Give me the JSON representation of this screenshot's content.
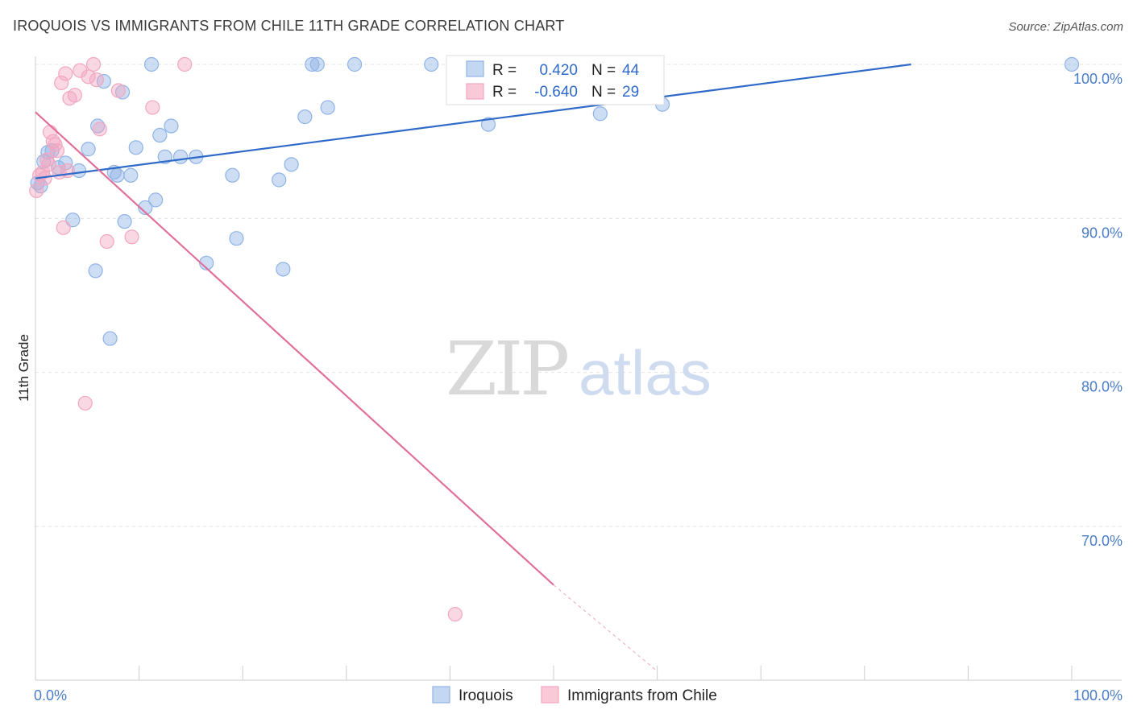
{
  "title": "IROQUOIS VS IMMIGRANTS FROM CHILE 11TH GRADE CORRELATION CHART",
  "source": "Source: ZipAtlas.com",
  "watermark": {
    "zip": "ZIP",
    "atlas": "atlas"
  },
  "chart_data": {
    "type": "scatter",
    "ylabel": "11th Grade",
    "xlim": [
      0,
      100
    ],
    "ylim": [
      61,
      100.5
    ],
    "x_tick_labels": [
      {
        "value": 0,
        "label": "0.0%"
      },
      {
        "value": 100,
        "label": "100.0%"
      }
    ],
    "y_tick_labels": [
      {
        "value": 100,
        "label": "100.0%"
      },
      {
        "value": 90,
        "label": "90.0%"
      },
      {
        "value": 80,
        "label": "80.0%"
      },
      {
        "value": 70,
        "label": "70.0%"
      }
    ],
    "grid": true,
    "legend_position": "top-center",
    "series": [
      {
        "name": "Iroquois",
        "color": "#8fb3e6",
        "line_color": "#2f6ac9",
        "r_label": "R =",
        "r_value": "0.420",
        "n_label": "N =",
        "n_value": "44",
        "trend": {
          "x1": 0,
          "y1": 92.6,
          "x2": 84.5,
          "y2": 100.0
        },
        "points": [
          [
            0.5,
            92.1
          ],
          [
            0.8,
            93.7
          ],
          [
            1.2,
            94.3
          ],
          [
            1.6,
            94.4
          ],
          [
            2.2,
            93.3
          ],
          [
            2.9,
            93.6
          ],
          [
            3.6,
            89.9
          ],
          [
            4.2,
            93.1
          ],
          [
            5.1,
            94.5
          ],
          [
            5.8,
            86.6
          ],
          [
            6.0,
            96.0
          ],
          [
            6.6,
            98.9
          ],
          [
            7.2,
            82.2
          ],
          [
            7.6,
            93.0
          ],
          [
            7.9,
            92.8
          ],
          [
            8.4,
            98.2
          ],
          [
            8.6,
            89.8
          ],
          [
            9.2,
            92.8
          ],
          [
            9.7,
            94.6
          ],
          [
            10.6,
            90.7
          ],
          [
            11.2,
            100.0
          ],
          [
            11.6,
            91.2
          ],
          [
            12.0,
            95.4
          ],
          [
            12.5,
            94.0
          ],
          [
            13.1,
            96.0
          ],
          [
            14.0,
            94.0
          ],
          [
            15.5,
            94.0
          ],
          [
            16.5,
            87.1
          ],
          [
            19.0,
            92.8
          ],
          [
            19.4,
            88.7
          ],
          [
            23.5,
            92.5
          ],
          [
            23.9,
            86.7
          ],
          [
            24.7,
            93.5
          ],
          [
            26.0,
            96.6
          ],
          [
            26.7,
            100.0
          ],
          [
            27.2,
            100.0
          ],
          [
            28.2,
            97.2
          ],
          [
            30.8,
            100.0
          ],
          [
            38.2,
            100.0
          ],
          [
            43.7,
            96.1
          ],
          [
            54.5,
            96.8
          ],
          [
            60.5,
            97.4
          ],
          [
            100.0,
            100.0
          ],
          [
            0.2,
            92.3
          ]
        ]
      },
      {
        "name": "Immigrants from Chile",
        "color": "#f2a7c0",
        "line_color": "#e0709a",
        "r_label": "R =",
        "r_value": "-0.640",
        "n_label": "N =",
        "n_value": "29",
        "trend": {
          "x1": 0,
          "y1": 96.9,
          "x2": 50.0,
          "y2": 66.2,
          "dash_x2": 60.0,
          "dash_y2": 60.6
        },
        "points": [
          [
            0.1,
            91.8
          ],
          [
            0.4,
            92.8
          ],
          [
            0.7,
            93.0
          ],
          [
            1.1,
            93.8
          ],
          [
            1.4,
            95.6
          ],
          [
            1.7,
            95.0
          ],
          [
            1.9,
            94.8
          ],
          [
            2.1,
            94.4
          ],
          [
            2.5,
            98.8
          ],
          [
            2.7,
            89.4
          ],
          [
            2.9,
            99.4
          ],
          [
            3.1,
            93.1
          ],
          [
            3.3,
            97.8
          ],
          [
            3.8,
            98.0
          ],
          [
            4.3,
            99.6
          ],
          [
            4.8,
            78.0
          ],
          [
            5.1,
            99.2
          ],
          [
            5.6,
            100.0
          ],
          [
            5.9,
            99.0
          ],
          [
            6.2,
            95.8
          ],
          [
            6.9,
            88.5
          ],
          [
            8.0,
            98.3
          ],
          [
            9.3,
            88.8
          ],
          [
            11.3,
            97.2
          ],
          [
            14.4,
            100.0
          ],
          [
            2.3,
            93.0
          ],
          [
            0.9,
            92.6
          ],
          [
            40.5,
            64.3
          ],
          [
            1.3,
            93.5
          ]
        ]
      }
    ]
  }
}
